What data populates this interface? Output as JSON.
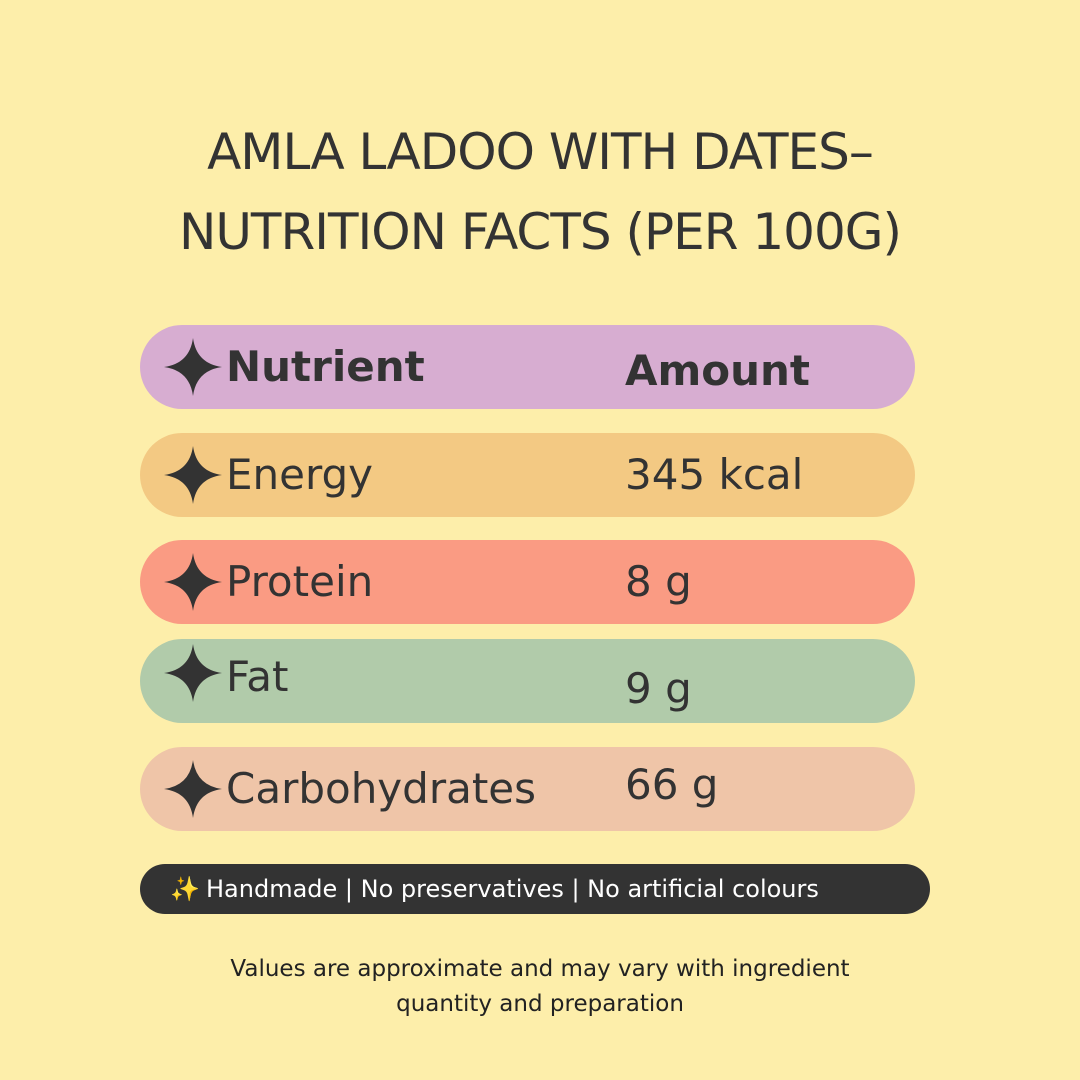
{
  "title": {
    "line1": "AMLA LADOO WITH DATES–",
    "line2": "NUTRITION FACTS (PER 100G)"
  },
  "table": {
    "header": {
      "nutrient": "Nutrient",
      "amount": "Amount",
      "color": "#d7add1"
    },
    "rows": [
      {
        "nutrient": "Energy",
        "amount": "345 kcal",
        "color": "#f3c983"
      },
      {
        "nutrient": "Protein",
        "amount": "8 g",
        "color": "#fa9b83"
      },
      {
        "nutrient": "Fat",
        "amount": "9 g",
        "color": "#b1cbaa"
      },
      {
        "nutrient": "Carbohydrates",
        "amount": "66 g",
        "color": "#efc5a8"
      }
    ],
    "bullet_icon": "four-point-star-icon"
  },
  "badge": {
    "icon": "sparkles-icon",
    "text": "Handmade | No preservatives | No artificial colours"
  },
  "note": {
    "line1": "Values are approximate and may vary with ingredient",
    "line2": "quantity and preparation"
  },
  "colors": {
    "background": "#fdeeaa",
    "text": "#333333",
    "badge_bg": "#333333",
    "badge_text": "#ffffff"
  }
}
